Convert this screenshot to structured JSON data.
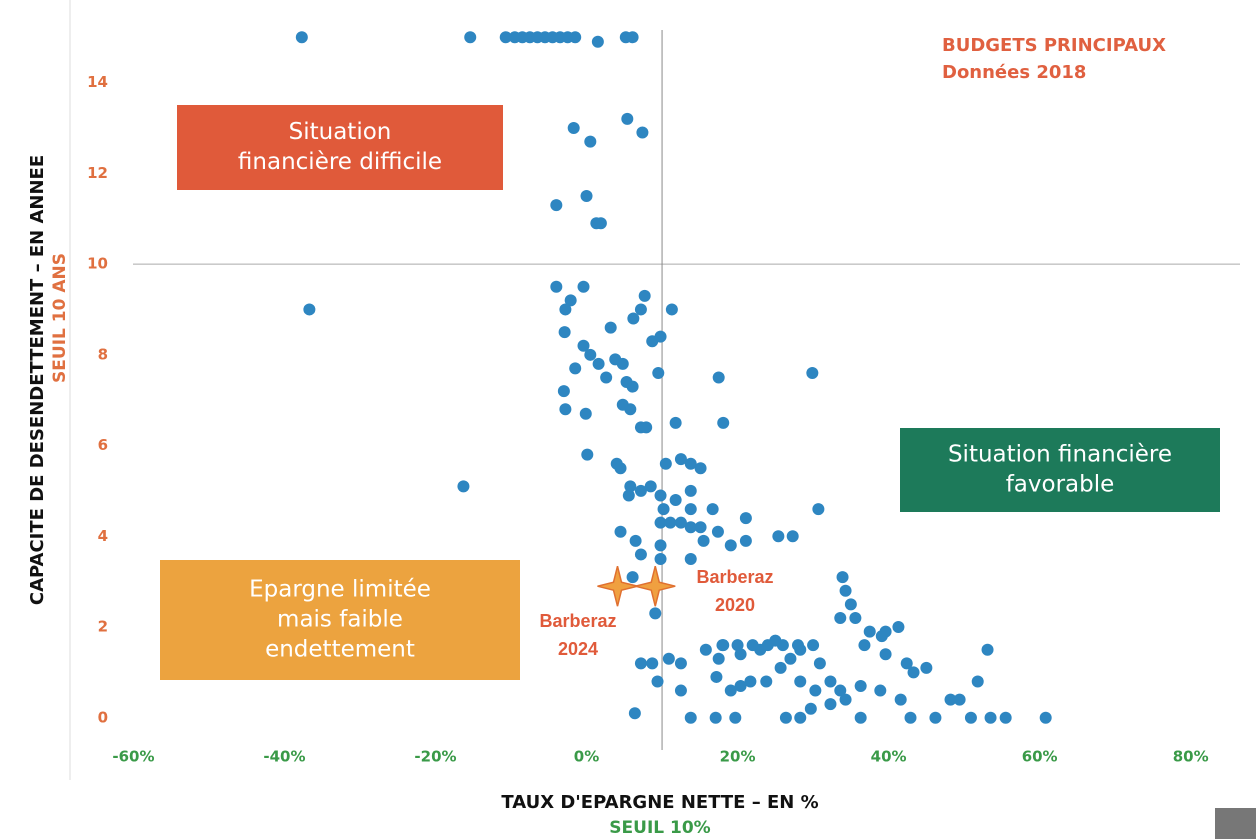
{
  "chart_data": {
    "type": "scatter",
    "title": [
      "BUDGETS PRINCIPAUX",
      "Données 2018"
    ],
    "x_label": "TAUX D'EPARGNE NETTE – EN %",
    "x_sublabel": "SEUIL 10%",
    "y_label": "CAPACITE DE DESENDETTEMENT – EN ANNEE",
    "y_sublabel": "SEUIL 10 ANS",
    "xlim": [
      -68,
      86
    ],
    "ylim": [
      -0.6,
      15.6
    ],
    "xticks": [
      {
        "value": -60,
        "label": "-60%"
      },
      {
        "value": -40,
        "label": "-40%"
      },
      {
        "value": -20,
        "label": "-20%"
      },
      {
        "value": 0,
        "label": "0%"
      },
      {
        "value": 20,
        "label": "20%"
      },
      {
        "value": 40,
        "label": "40%"
      },
      {
        "value": 60,
        "label": "60%"
      },
      {
        "value": 80,
        "label": "80%"
      }
    ],
    "yticks": [
      0,
      2,
      4,
      6,
      8,
      10,
      12,
      14
    ],
    "thresholds": {
      "x": 10,
      "y": 10
    },
    "color": "#2e86c1",
    "x": [
      -37.7,
      -15.4,
      -10.7,
      -9.5,
      -8.5,
      -7.5,
      -6.5,
      -5.5,
      -4.5,
      -3.5,
      -2.5,
      -1.5,
      1.5,
      5.2,
      6.1,
      5.4,
      7.4,
      -1.7,
      0.5,
      0,
      1.3,
      1.9,
      -4,
      -36.7,
      -16.3,
      -4,
      -0.4,
      -2.1,
      -2.8,
      -2.9,
      -0.4,
      7.7,
      11.3,
      7.2,
      6.2,
      3.2,
      8.7,
      9.8,
      -1.5,
      0.5,
      1.6,
      3.8,
      4.8,
      2.6,
      5.3,
      6.1,
      9.5,
      -3,
      -2.8,
      -0.1,
      4.8,
      5.8,
      7.2,
      7.9,
      11.8,
      17.5,
      18.1,
      29.9,
      0.1,
      4,
      4.5,
      5.8,
      5.6,
      7.2,
      8.5,
      10.5,
      12.5,
      13.8,
      15.1,
      13.8,
      9.8,
      10.2,
      11.8,
      13.8,
      16.7,
      9.8,
      11.1,
      12.5,
      13.8,
      15.1,
      17.4,
      21.1,
      4.5,
      6.5,
      7.2,
      9.8,
      15.5,
      19.1,
      21.1,
      25.4,
      27.3,
      30.7,
      9.8,
      13.8,
      6.1,
      33.9,
      34.3,
      35,
      33.6,
      35.6,
      37.5,
      39.1,
      36.8,
      39.6,
      41.3,
      39.6,
      42.4,
      43.3,
      45,
      49.4,
      48.2,
      53.1,
      51.8,
      9.1,
      7.2,
      8.7,
      10.9,
      12.5,
      15.8,
      17.5,
      18.1,
      20.4,
      23,
      25,
      27,
      28.3,
      30.9,
      20.4,
      21.7,
      19.1,
      17.2,
      12.5,
      9.4,
      23.8,
      25.7,
      28.3,
      30.3,
      32.3,
      33.6,
      36.3,
      38.9,
      41.6,
      13.8,
      17.1,
      19.7,
      26.4,
      28.3,
      36.3,
      42.9,
      46.2,
      50.9,
      53.5,
      55.5,
      60.8,
      6.4,
      32.3,
      34.3,
      29.7,
      18,
      20,
      22,
      24,
      26,
      28,
      30
    ],
    "y": [
      15,
      15,
      15,
      15,
      15,
      15,
      15,
      15,
      15,
      15,
      15,
      15,
      14.9,
      15,
      15,
      13.2,
      12.9,
      13,
      12.7,
      11.5,
      10.9,
      10.9,
      11.3,
      9,
      5.1,
      9.5,
      9.5,
      9.2,
      9,
      8.5,
      8.2,
      9.3,
      9,
      9,
      8.8,
      8.6,
      8.3,
      8.4,
      7.7,
      8,
      7.8,
      7.9,
      7.8,
      7.5,
      7.4,
      7.3,
      7.6,
      7.2,
      6.8,
      6.7,
      6.9,
      6.8,
      6.4,
      6.4,
      6.5,
      7.5,
      6.5,
      7.6,
      5.8,
      5.6,
      5.5,
      5.1,
      4.9,
      5,
      5.1,
      5.6,
      5.7,
      5.6,
      5.5,
      5,
      4.9,
      4.6,
      4.8,
      4.6,
      4.6,
      4.3,
      4.3,
      4.3,
      4.2,
      4.2,
      4.1,
      4.4,
      4.1,
      3.9,
      3.6,
      3.8,
      3.9,
      3.8,
      3.9,
      4,
      4,
      4.6,
      3.5,
      3.5,
      3.1,
      3.1,
      2.8,
      2.5,
      2.2,
      2.2,
      1.9,
      1.8,
      1.6,
      1.9,
      2,
      1.4,
      1.2,
      1,
      1.1,
      0.4,
      0.4,
      1.5,
      0.8,
      2.3,
      1.2,
      1.2,
      1.3,
      1.2,
      1.5,
      1.3,
      1.6,
      1.4,
      1.5,
      1.7,
      1.3,
      1.5,
      1.2,
      0.7,
      0.8,
      0.6,
      0.9,
      0.6,
      0.8,
      0.8,
      1.1,
      0.8,
      0.6,
      0.8,
      0.6,
      0.7,
      0.6,
      0.4,
      0,
      0,
      0,
      0,
      0,
      0,
      0,
      0,
      0,
      0,
      0,
      0,
      0.1,
      0.3,
      0.4,
      0.2,
      1.6,
      1.6,
      1.6,
      1.6,
      1.6,
      1.6,
      1.6
    ],
    "highlights": [
      {
        "label": [
          "Barberaz",
          "2020"
        ],
        "x": 9.1,
        "y": 2.9
      },
      {
        "label": [
          "Barberaz",
          "2024"
        ],
        "x": 4.1,
        "y": 2.9
      }
    ],
    "annotations": [
      {
        "lines": [
          "Situation",
          "financière difficile"
        ],
        "color": "#e05a3a"
      },
      {
        "lines": [
          "Situation financière",
          "favorable"
        ],
        "color": "#1d7a5a"
      },
      {
        "lines": [
          "Epargne limitée",
          "mais faible",
          "endettement"
        ],
        "color": "#eca33f"
      }
    ]
  }
}
